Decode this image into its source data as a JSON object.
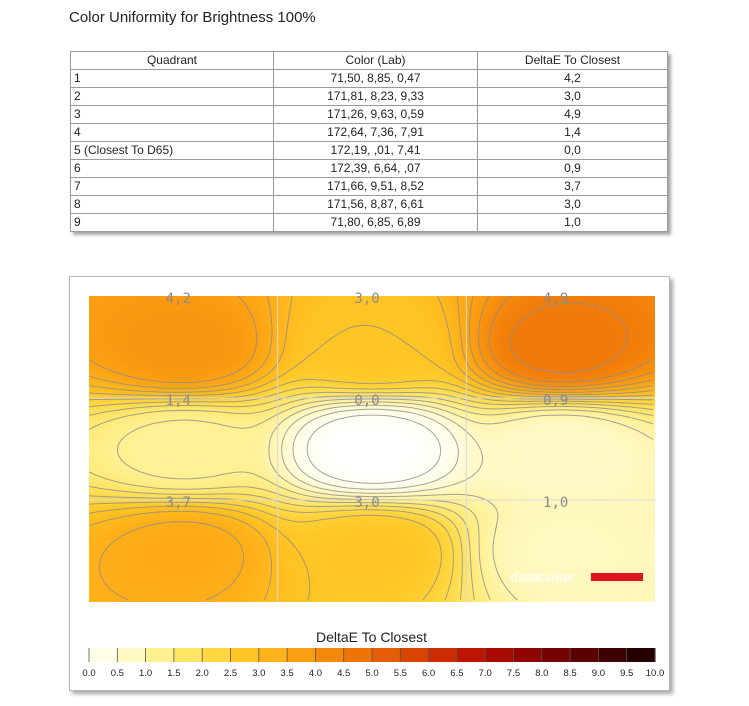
{
  "page": {
    "title": "Color Uniformity for Brightness 100%"
  },
  "table": {
    "headers": [
      "Quadrant",
      "Color (Lab)",
      "DeltaE To Closest"
    ],
    "rows": [
      [
        "1",
        "71,50,  8,85,  0,47",
        "4,2"
      ],
      [
        "2",
        "171,81,  8,23,  9,33",
        "3,0"
      ],
      [
        "3",
        "171,26,  9,63,  0,59",
        "4,9"
      ],
      [
        "4",
        "172,64,  7,36,  7,91",
        "1,4"
      ],
      [
        "5 (Closest To D65)",
        "172,19,   ,01,  7,41",
        "0,0"
      ],
      [
        "6",
        "172,39,  6,64,   ,07",
        "0,9"
      ],
      [
        "7",
        "171,66,  9,51,  8,52",
        "3,7"
      ],
      [
        "8",
        "171,56,  8,87,  6,61",
        "3,0"
      ],
      [
        "9",
        "71,80,  6,85,  6,89",
        "1,0"
      ]
    ]
  },
  "chart_data": {
    "type": "heatmap",
    "grid_rows": 3,
    "grid_cols": 3,
    "quadrant_values": [
      [
        4.2,
        3.0,
        4.9
      ],
      [
        1.4,
        0.0,
        0.9
      ],
      [
        3.7,
        3.0,
        1.0
      ]
    ],
    "quadrant_labels": [
      [
        "4,2",
        "3,0",
        "4,9"
      ],
      [
        "1,4",
        "0,0",
        "0,9"
      ],
      [
        "3,7",
        "3,0",
        "1,0"
      ]
    ],
    "watermark": "datacolor",
    "legend": {
      "title": "DeltaE To Closest",
      "ticks": [
        "0.0",
        "0.5",
        "1.0",
        "1.5",
        "2.0",
        "2.5",
        "3.0",
        "3.5",
        "4.0",
        "4.5",
        "5.0",
        "5.5",
        "6.0",
        "6.5",
        "7.0",
        "7.5",
        "8.0",
        "8.5",
        "9.0",
        "9.5",
        "10.0"
      ],
      "colors": [
        "#ffffff",
        "#fffde8",
        "#fff8c0",
        "#fff090",
        "#ffe566",
        "#ffd740",
        "#ffc524",
        "#ffb21a",
        "#fc9e12",
        "#f5890c",
        "#ee7408",
        "#e55d04",
        "#da4402",
        "#cd2c02",
        "#bd1502",
        "#a80a02",
        "#900404",
        "#760202",
        "#5a0202",
        "#3e0101",
        "#250000"
      ]
    }
  }
}
